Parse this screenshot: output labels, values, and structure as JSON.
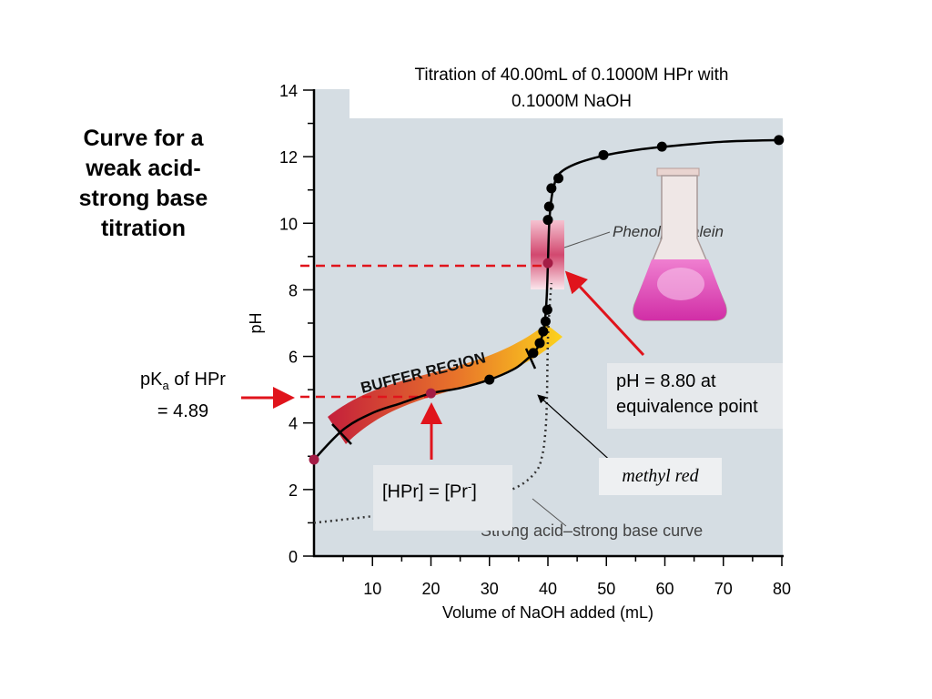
{
  "side_title": "Curve for a weak acid-strong base titration",
  "pka_label": {
    "prefix": "pK",
    "sub": "a",
    "suffix": " of HPr",
    "line2": "= 4.89"
  },
  "equivalence_label": {
    "line1": "pH = 8.80 at",
    "line2": "equivalence point"
  },
  "half_equiv_label": {
    "left": "[HPr] = [Pr",
    "sup": "-",
    "right": "]"
  },
  "methyl_red_label": "methyl red",
  "phenolphthalein_label": "Phenolphthalein",
  "buffer_region_label": "BUFFER REGION",
  "strong_curve_label": "Strong acid–strong base curve",
  "colors": {
    "plot_bg": "#d5dde3",
    "curve": "#000000",
    "marker": "#a41c45",
    "arrow": "#e0141c",
    "dashed": "#e0141c",
    "indicator": "#e46a8e"
  },
  "chart_data": {
    "type": "line",
    "title": "Titration of 40.00mL of 0.1000M HPr with 0.1000M NaOH",
    "xlabel": "Volume of NaOH added (mL)",
    "ylabel": "pH",
    "xlim": [
      0,
      80
    ],
    "ylim": [
      0,
      14
    ],
    "xticks": [
      10,
      20,
      30,
      40,
      50,
      60,
      70,
      80
    ],
    "yticks": [
      0,
      2,
      4,
      6,
      8,
      10,
      12,
      14
    ],
    "series": [
      {
        "name": "Weak acid–strong base",
        "x": [
          0,
          5,
          10,
          15,
          20,
          25,
          30,
          34,
          36,
          38,
          39,
          39.5,
          39.8,
          40,
          40.2,
          40.5,
          41,
          42,
          45,
          50,
          55,
          60,
          70,
          80
        ],
        "y": [
          2.9,
          3.8,
          4.3,
          4.6,
          4.89,
          5.05,
          5.3,
          5.6,
          5.85,
          6.2,
          6.6,
          7.1,
          7.8,
          8.8,
          9.9,
          10.6,
          11.1,
          11.5,
          11.8,
          12.05,
          12.2,
          12.3,
          12.45,
          12.5
        ],
        "points": [
          {
            "x": 0,
            "y": 2.9
          },
          {
            "x": 20,
            "y": 4.89
          },
          {
            "x": 30,
            "y": 5.3
          },
          {
            "x": 37.5,
            "y": 6.1
          },
          {
            "x": 38.6,
            "y": 6.4
          },
          {
            "x": 39.2,
            "y": 6.75
          },
          {
            "x": 39.6,
            "y": 7.05
          },
          {
            "x": 39.9,
            "y": 7.4
          },
          {
            "x": 40,
            "y": 8.8
          },
          {
            "x": 40,
            "y": 10.1
          },
          {
            "x": 40.2,
            "y": 10.5
          },
          {
            "x": 40.6,
            "y": 11.05
          },
          {
            "x": 41.8,
            "y": 11.35
          },
          {
            "x": 49.5,
            "y": 12.05
          },
          {
            "x": 59.5,
            "y": 12.3
          },
          {
            "x": 79.5,
            "y": 12.5
          }
        ]
      },
      {
        "name": "Strong acid–strong base",
        "style": "dotted",
        "x": [
          0,
          10,
          20,
          30,
          35,
          38,
          39,
          39.5,
          39.8,
          40,
          40.3,
          40.6
        ],
        "y": [
          1.0,
          1.2,
          1.45,
          1.8,
          2.1,
          2.55,
          3.0,
          3.6,
          4.5,
          6.5,
          7.5,
          8.2
        ]
      }
    ],
    "annotations": [
      "pH = 8.80 at equivalence point",
      "pKa of HPr = 4.89",
      "[HPr] = [Pr-]",
      "BUFFER REGION",
      "Phenolphthalein",
      "methyl red",
      "Strong acid–strong base curve"
    ]
  }
}
